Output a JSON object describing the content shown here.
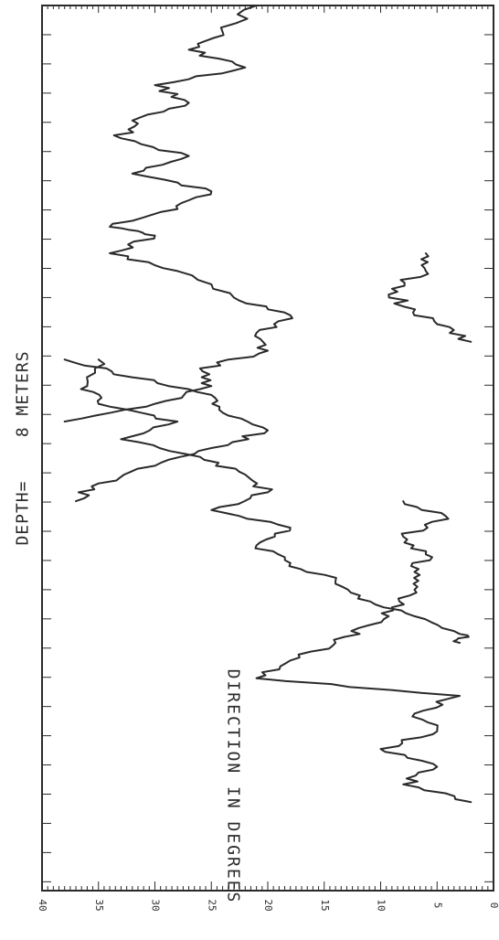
{
  "chart_data": {
    "type": "line",
    "title": "DEPTH=",
    "depth_value": "8 METERS",
    "ylabel": "DIRECTION IN DEGREES",
    "xlabel": "",
    "grid": false,
    "legend": "none",
    "y_ticks": [
      0,
      5,
      10,
      15,
      20,
      25,
      30,
      35,
      40
    ],
    "y_tick_labels": [
      "0",
      "5",
      "10",
      "15",
      "20",
      "25",
      "30",
      "35",
      "40"
    ],
    "ylim": [
      0,
      40
    ],
    "xlim": [
      0,
      100
    ],
    "line_color": "#2a2a2a",
    "series": [
      {
        "values": [
          [
            0,
            21
          ],
          [
            3,
            24
          ],
          [
            5,
            27
          ],
          [
            7,
            22
          ],
          [
            9,
            30
          ],
          [
            11,
            27
          ],
          [
            13,
            32
          ],
          [
            15,
            33
          ],
          [
            17,
            27
          ],
          [
            19,
            32
          ],
          [
            21,
            25
          ],
          [
            23,
            28
          ],
          [
            25,
            34
          ],
          [
            26,
            30
          ]
        ]
      },
      {
        "values": [
          [
            26,
            30
          ],
          [
            28,
            34
          ],
          [
            30,
            28
          ],
          [
            33,
            23
          ],
          [
            35,
            18
          ],
          [
            37,
            21
          ],
          [
            39,
            20
          ],
          [
            41,
            26
          ],
          [
            43,
            25
          ],
          [
            45,
            30
          ],
          [
            47,
            38
          ]
        ]
      },
      {
        "values": [
          [
            28,
            6
          ],
          [
            30,
            6
          ],
          [
            32,
            9
          ],
          [
            34,
            8
          ],
          [
            36,
            5
          ],
          [
            38,
            2
          ]
        ]
      },
      {
        "values": [
          [
            40,
            38
          ],
          [
            42,
            32
          ],
          [
            44,
            25
          ],
          [
            46,
            24
          ],
          [
            48,
            20
          ],
          [
            50,
            25
          ],
          [
            52,
            30
          ],
          [
            54,
            35
          ],
          [
            56,
            37
          ]
        ]
      },
      {
        "values": [
          [
            56,
            8
          ],
          [
            58,
            4
          ],
          [
            60,
            8
          ],
          [
            62,
            6
          ],
          [
            64,
            7
          ],
          [
            66,
            7
          ],
          [
            68,
            9
          ],
          [
            70,
            11
          ],
          [
            72,
            14
          ],
          [
            74,
            18
          ],
          [
            76,
            21
          ],
          [
            78,
            3
          ],
          [
            80,
            7
          ],
          [
            82,
            5
          ],
          [
            84,
            10
          ],
          [
            86,
            5
          ],
          [
            88,
            8
          ],
          [
            90,
            2
          ]
        ]
      },
      {
        "values": [
          [
            40,
            35
          ],
          [
            43,
            36
          ],
          [
            45,
            35
          ],
          [
            47,
            28
          ],
          [
            49,
            33
          ],
          [
            51,
            26
          ],
          [
            53,
            22
          ],
          [
            55,
            20
          ],
          [
            57,
            25
          ],
          [
            59,
            18
          ],
          [
            61,
            21
          ],
          [
            63,
            18
          ],
          [
            65,
            14
          ],
          [
            67,
            12
          ],
          [
            69,
            7
          ],
          [
            71,
            3
          ],
          [
            72,
            3
          ]
        ]
      }
    ]
  }
}
